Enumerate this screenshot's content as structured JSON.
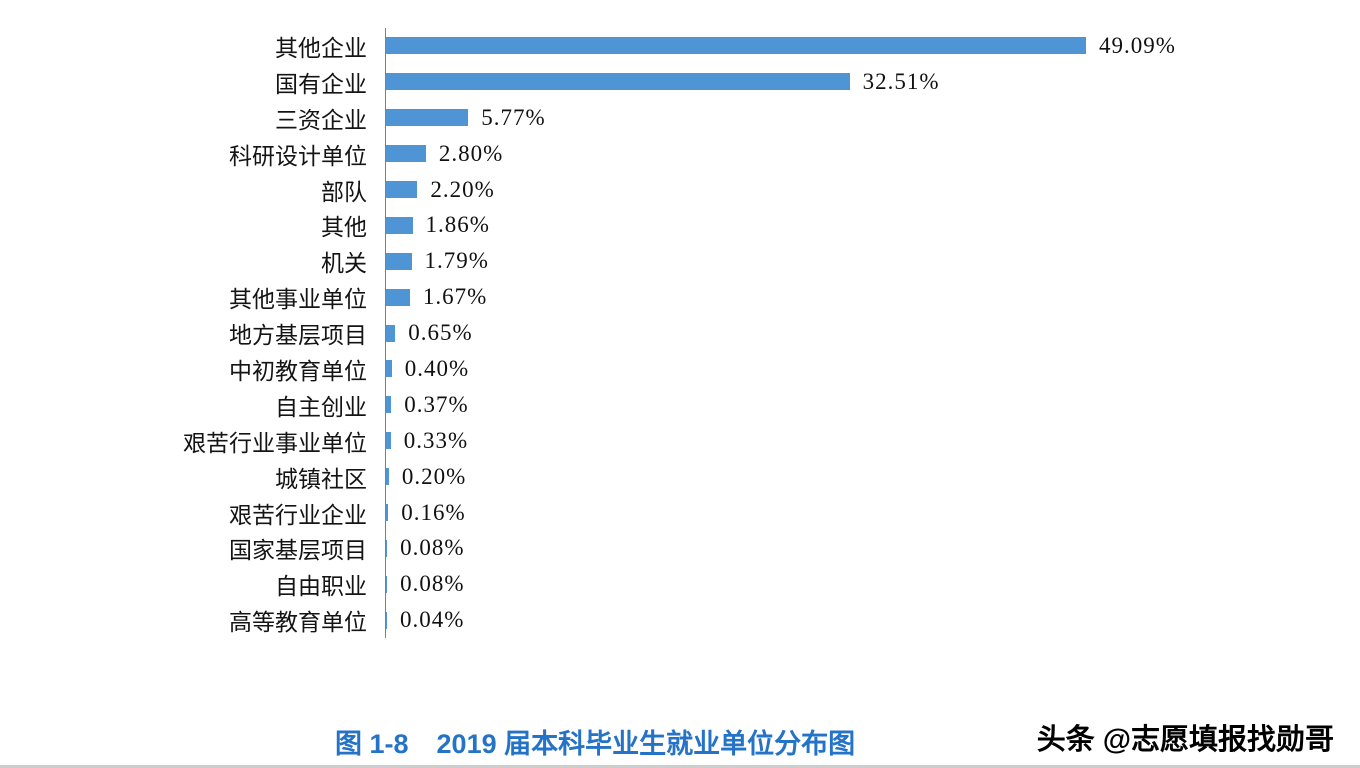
{
  "chart_data": {
    "type": "bar",
    "orientation": "horizontal",
    "title": "图 1-8　2019 届本科毕业生就业单位分布图",
    "categories": [
      "其他企业",
      "国有企业",
      "三资企业",
      "科研设计单位",
      "部队",
      "其他",
      "机关",
      "其他事业单位",
      "地方基层项目",
      "中初教育单位",
      "自主创业",
      "艰苦行业事业单位",
      "城镇社区",
      "艰苦行业企业",
      "国家基层项目",
      "自由职业",
      "高等教育单位"
    ],
    "values": [
      49.09,
      32.51,
      5.77,
      2.8,
      2.2,
      1.86,
      1.79,
      1.67,
      0.65,
      0.4,
      0.37,
      0.33,
      0.2,
      0.16,
      0.08,
      0.08,
      0.04
    ],
    "value_labels": [
      "49.09%",
      "32.51%",
      "5.77%",
      "2.80%",
      "2.20%",
      "1.86%",
      "1.79%",
      "1.67%",
      "0.65%",
      "0.40%",
      "0.37%",
      "0.33%",
      "0.20%",
      "0.16%",
      "0.08%",
      "0.08%",
      "0.04%"
    ],
    "xlim": [
      0,
      50
    ],
    "grid": false,
    "legend": "none",
    "bar_color": "#4f94d4",
    "axis_line_color": "#7f7f7f"
  },
  "caption": {
    "label": "图 1-8",
    "title": "2019 届本科毕业生就业单位分布图",
    "color": "#2573c7"
  },
  "watermark": {
    "logo": "头条",
    "handle": "@志愿填报找勋哥"
  }
}
